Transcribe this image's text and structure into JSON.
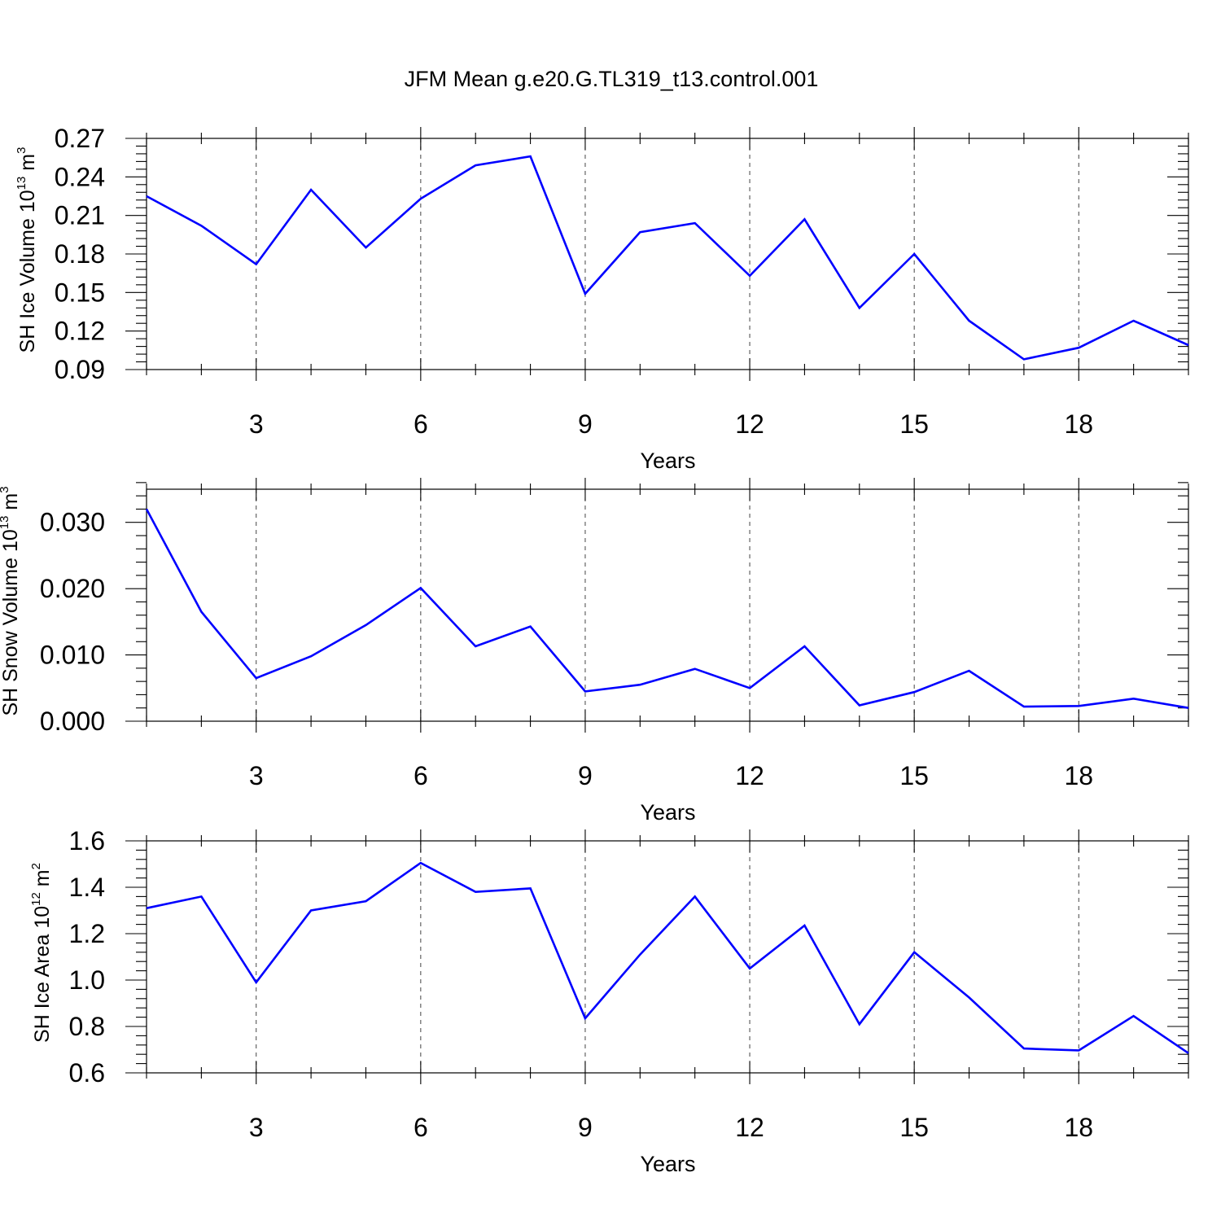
{
  "title": "JFM Mean g.e20.G.TL319_t13.control.001",
  "colors": {
    "series": "#0000ff",
    "axes": "#000000",
    "grid": "#444444"
  },
  "chart_data": [
    {
      "type": "line",
      "title": "",
      "xlabel": "Years",
      "ylabel": {
        "prefix": "SH Ice Volume 10",
        "exp1": "13",
        "mid": " m",
        "exp2": "3"
      },
      "xlim": [
        1,
        20
      ],
      "ylim": [
        0.09,
        0.27
      ],
      "grid": "vertical-dashed",
      "x": [
        1,
        2,
        3,
        4,
        5,
        6,
        7,
        8,
        9,
        10,
        11,
        12,
        13,
        14,
        15,
        16,
        17,
        18,
        19,
        20
      ],
      "values": [
        0.225,
        0.202,
        0.172,
        0.23,
        0.185,
        0.223,
        0.249,
        0.256,
        0.149,
        0.197,
        0.204,
        0.163,
        0.207,
        0.138,
        0.18,
        0.128,
        0.098,
        0.107,
        0.128,
        0.109
      ],
      "xticks": [
        3,
        6,
        9,
        12,
        15,
        18
      ],
      "xtick_labels": [
        "3",
        "6",
        "9",
        "12",
        "15",
        "18"
      ],
      "yticks": [
        0.09,
        0.12,
        0.15,
        0.18,
        0.21,
        0.24,
        0.27
      ],
      "ytick_labels": [
        "0.09",
        "0.12",
        "0.15",
        "0.18",
        "0.21",
        "0.24",
        "0.27"
      ],
      "yminor_step": 0.006
    },
    {
      "type": "line",
      "title": "",
      "xlabel": "Years",
      "ylabel": {
        "prefix": "SH Snow Volume 10",
        "exp1": "13",
        "mid": " m",
        "exp2": "3"
      },
      "xlim": [
        1,
        20
      ],
      "ylim": [
        0.0,
        0.035
      ],
      "grid": "vertical-dashed",
      "x": [
        1,
        2,
        3,
        4,
        5,
        6,
        7,
        8,
        9,
        10,
        11,
        12,
        13,
        14,
        15,
        16,
        17,
        18,
        19,
        20
      ],
      "values": [
        0.032,
        0.0165,
        0.0065,
        0.0098,
        0.0145,
        0.0201,
        0.0113,
        0.0143,
        0.0045,
        0.0055,
        0.0079,
        0.005,
        0.0113,
        0.0024,
        0.0044,
        0.0076,
        0.0022,
        0.0023,
        0.0034,
        0.002
      ],
      "xticks": [
        3,
        6,
        9,
        12,
        15,
        18
      ],
      "xtick_labels": [
        "3",
        "6",
        "9",
        "12",
        "15",
        "18"
      ],
      "yticks": [
        0.0,
        0.01,
        0.02,
        0.03
      ],
      "ytick_labels": [
        "0.000",
        "0.010",
        "0.020",
        "0.030"
      ],
      "yminor_step": 0.002
    },
    {
      "type": "line",
      "title": "",
      "xlabel": "Years",
      "ylabel": {
        "prefix": "SH Ice Area 10",
        "exp1": "12",
        "mid": " m",
        "exp2": "2"
      },
      "xlim": [
        1,
        20
      ],
      "ylim": [
        0.6,
        1.6
      ],
      "grid": "vertical-dashed",
      "x": [
        1,
        2,
        3,
        4,
        5,
        6,
        7,
        8,
        9,
        10,
        11,
        12,
        13,
        14,
        15,
        16,
        17,
        18,
        19,
        20
      ],
      "values": [
        1.31,
        1.36,
        0.99,
        1.3,
        1.34,
        1.505,
        1.38,
        1.395,
        0.835,
        1.11,
        1.36,
        1.05,
        1.235,
        0.81,
        1.12,
        0.925,
        0.705,
        0.697,
        0.845,
        0.685
      ],
      "xticks": [
        3,
        6,
        9,
        12,
        15,
        18
      ],
      "xtick_labels": [
        "3",
        "6",
        "9",
        "12",
        "15",
        "18"
      ],
      "yticks": [
        0.6,
        0.8,
        1.0,
        1.2,
        1.4,
        1.6
      ],
      "ytick_labels": [
        "0.6",
        "0.8",
        "1.0",
        "1.2",
        "1.4",
        "1.6"
      ],
      "yminor_step": 0.04
    }
  ]
}
